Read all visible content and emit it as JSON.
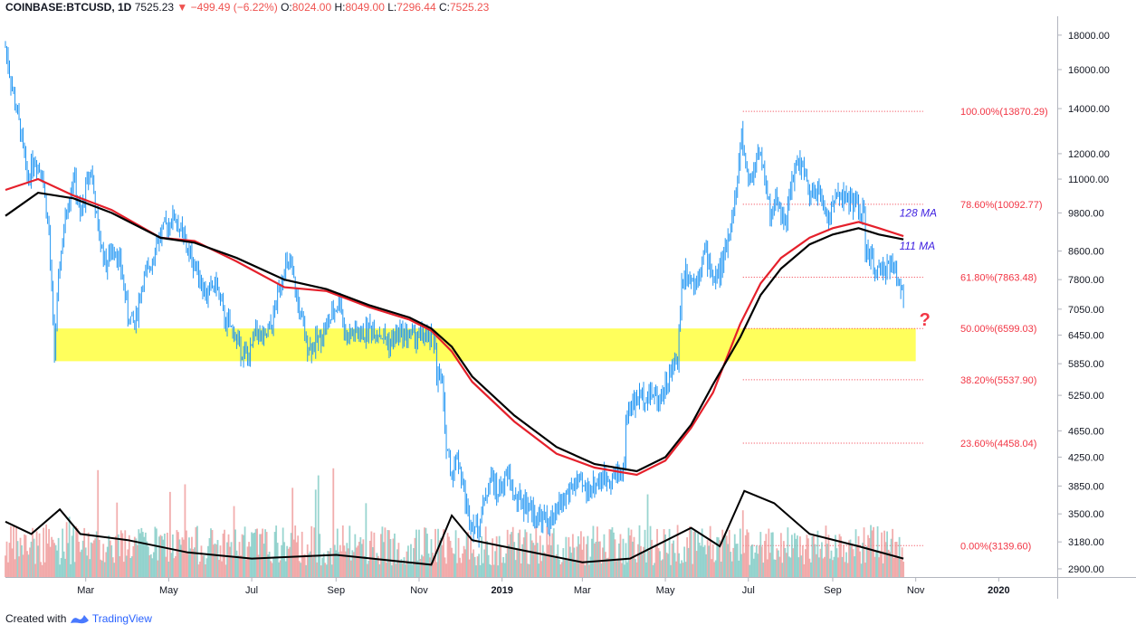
{
  "header": {
    "symbol": "COINBASE:BTCUSD, 1D",
    "last": "7525.23",
    "change": "−499.49 (−6.22%)",
    "o_label": "O:",
    "o": "8024.00",
    "h_label": "H:",
    "h": "8049.00",
    "l_label": "L:",
    "l": "7296.44",
    "c_label": "C:",
    "c": "7525.23"
  },
  "footer": {
    "created_with": "Created with",
    "brand": "TradingView"
  },
  "colors": {
    "candle": "#2196f3",
    "ma_red": "#e5202b",
    "ma_black": "#000000",
    "fib": "#f23645",
    "zone": "#ffff40",
    "vol_up": "#80cbc4",
    "vol_down": "#ef9a9a",
    "ma_label": "#3d1ee0"
  },
  "chart_data": {
    "type": "line",
    "y_scale": "log",
    "ylim": [
      2820,
      19200
    ],
    "xlim": [
      "2018-01-01",
      "2020-02-13"
    ],
    "y_ticks": [
      "18000.00",
      "16000.00",
      "14000.00",
      "12000.00",
      "11000.00",
      "9800.00",
      "8600.00",
      "7800.00",
      "7050.00",
      "6450.00",
      "5850.00",
      "5250.00",
      "4650.00",
      "4250.00",
      "3850.00",
      "3500.00",
      "3180.00",
      "2900.00"
    ],
    "x_ticks": [
      {
        "label": "Mar",
        "date": "2018-03-01"
      },
      {
        "label": "May",
        "date": "2018-05-01"
      },
      {
        "label": "Jul",
        "date": "2018-07-01"
      },
      {
        "label": "Sep",
        "date": "2018-09-01"
      },
      {
        "label": "Nov",
        "date": "2018-11-01"
      },
      {
        "label": "2019",
        "date": "2019-01-01",
        "bold": true
      },
      {
        "label": "Mar",
        "date": "2019-03-01"
      },
      {
        "label": "May",
        "date": "2019-05-01"
      },
      {
        "label": "Jul",
        "date": "2019-07-01"
      },
      {
        "label": "Sep",
        "date": "2019-09-01"
      },
      {
        "label": "Nov",
        "date": "2019-11-01"
      },
      {
        "label": "2020",
        "date": "2020-01-01",
        "bold": true
      }
    ],
    "price": [
      [
        "2018-01-01",
        17300
      ],
      [
        "2018-01-06",
        15000
      ],
      [
        "2018-01-12",
        13000
      ],
      [
        "2018-01-17",
        11000
      ],
      [
        "2018-01-22",
        11800
      ],
      [
        "2018-01-28",
        11300
      ],
      [
        "2018-02-02",
        9100
      ],
      [
        "2018-02-06",
        6100
      ],
      [
        "2018-02-10",
        8300
      ],
      [
        "2018-02-15",
        9900
      ],
      [
        "2018-02-20",
        11200
      ],
      [
        "2018-02-25",
        9600
      ],
      [
        "2018-03-02",
        10900
      ],
      [
        "2018-03-05",
        11400
      ],
      [
        "2018-03-10",
        9200
      ],
      [
        "2018-03-16",
        8200
      ],
      [
        "2018-03-22",
        8800
      ],
      [
        "2018-03-28",
        7900
      ],
      [
        "2018-04-01",
        6900
      ],
      [
        "2018-04-06",
        6700
      ],
      [
        "2018-04-12",
        7800
      ],
      [
        "2018-04-16",
        8000
      ],
      [
        "2018-04-22",
        8900
      ],
      [
        "2018-04-28",
        9300
      ],
      [
        "2018-05-05",
        9700
      ],
      [
        "2018-05-10",
        9200
      ],
      [
        "2018-05-16",
        8500
      ],
      [
        "2018-05-22",
        8100
      ],
      [
        "2018-05-28",
        7400
      ],
      [
        "2018-06-05",
        7700
      ],
      [
        "2018-06-11",
        6800
      ],
      [
        "2018-06-18",
        6500
      ],
      [
        "2018-06-24",
        6100
      ],
      [
        "2018-06-29",
        5950
      ],
      [
        "2018-07-04",
        6600
      ],
      [
        "2018-07-10",
        6300
      ],
      [
        "2018-07-16",
        6700
      ],
      [
        "2018-07-20",
        7400
      ],
      [
        "2018-07-25",
        8200
      ],
      [
        "2018-07-30",
        8100
      ],
      [
        "2018-08-05",
        7000
      ],
      [
        "2018-08-10",
        6300
      ],
      [
        "2018-08-14",
        6200
      ],
      [
        "2018-08-20",
        6400
      ],
      [
        "2018-08-26",
        6700
      ],
      [
        "2018-09-01",
        7100
      ],
      [
        "2018-09-04",
        7300
      ],
      [
        "2018-09-08",
        6400
      ],
      [
        "2018-09-14",
        6500
      ],
      [
        "2018-09-20",
        6450
      ],
      [
        "2018-09-25",
        6600
      ],
      [
        "2018-10-01",
        6550
      ],
      [
        "2018-10-10",
        6300
      ],
      [
        "2018-10-11",
        6250
      ],
      [
        "2018-10-16",
        6500
      ],
      [
        "2018-10-25",
        6450
      ],
      [
        "2018-11-05",
        6400
      ],
      [
        "2018-11-13",
        6300
      ],
      [
        "2018-11-14",
        5600
      ],
      [
        "2018-11-18",
        5500
      ],
      [
        "2018-11-20",
        4600
      ],
      [
        "2018-11-25",
        4000
      ],
      [
        "2018-11-29",
        4300
      ],
      [
        "2018-12-07",
        3500
      ],
      [
        "2018-12-14",
        3300
      ],
      [
        "2018-12-18",
        3600
      ],
      [
        "2018-12-24",
        4000
      ],
      [
        "2018-12-28",
        3750
      ],
      [
        "2019-01-06",
        4000
      ],
      [
        "2019-01-10",
        3700
      ],
      [
        "2019-01-20",
        3600
      ],
      [
        "2019-01-28",
        3450
      ],
      [
        "2019-02-07",
        3400
      ],
      [
        "2019-02-12",
        3600
      ],
      [
        "2019-02-24",
        3900
      ],
      [
        "2019-03-04",
        3800
      ],
      [
        "2019-03-15",
        3950
      ],
      [
        "2019-03-25",
        4000
      ],
      [
        "2019-04-01",
        4100
      ],
      [
        "2019-04-02",
        4900
      ],
      [
        "2019-04-10",
        5200
      ],
      [
        "2019-04-20",
        5300
      ],
      [
        "2019-04-26",
        5200
      ],
      [
        "2019-05-01",
        5400
      ],
      [
        "2019-05-10",
        6000
      ],
      [
        "2019-05-13",
        7700
      ],
      [
        "2019-05-16",
        8100
      ],
      [
        "2019-05-22",
        7700
      ],
      [
        "2019-05-30",
        8600
      ],
      [
        "2019-06-06",
        7800
      ],
      [
        "2019-06-12",
        8200
      ],
      [
        "2019-06-17",
        9200
      ],
      [
        "2019-06-22",
        10500
      ],
      [
        "2019-06-26",
        12800
      ],
      [
        "2019-06-28",
        11900
      ],
      [
        "2019-07-02",
        10800
      ],
      [
        "2019-07-09",
        12300
      ],
      [
        "2019-07-12",
        11300
      ],
      [
        "2019-07-17",
        9700
      ],
      [
        "2019-07-22",
        10300
      ],
      [
        "2019-07-28",
        9500
      ],
      [
        "2019-08-05",
        11600
      ],
      [
        "2019-08-10",
        11500
      ],
      [
        "2019-08-15",
        10200
      ],
      [
        "2019-08-20",
        10700
      ],
      [
        "2019-08-29",
        9600
      ],
      [
        "2019-09-05",
        10600
      ],
      [
        "2019-09-12",
        10200
      ],
      [
        "2019-09-19",
        10150
      ],
      [
        "2019-09-24",
        9600
      ],
      [
        "2019-09-25",
        8600
      ],
      [
        "2019-09-30",
        8300
      ],
      [
        "2019-10-06",
        7900
      ],
      [
        "2019-10-12",
        8300
      ],
      [
        "2019-10-18",
        7950
      ],
      [
        "2019-10-23",
        7500
      ]
    ],
    "ma_128": [
      [
        "2018-01-01",
        10600
      ],
      [
        "2018-01-25",
        11000
      ],
      [
        "2018-02-20",
        10400
      ],
      [
        "2018-03-20",
        9900
      ],
      [
        "2018-04-25",
        9000
      ],
      [
        "2018-05-20",
        8900
      ],
      [
        "2018-06-20",
        8300
      ],
      [
        "2018-07-25",
        7600
      ],
      [
        "2018-08-25",
        7500
      ],
      [
        "2018-09-25",
        7100
      ],
      [
        "2018-10-25",
        6800
      ],
      [
        "2018-11-10",
        6550
      ],
      [
        "2018-11-25",
        6100
      ],
      [
        "2018-12-10",
        5500
      ],
      [
        "2019-01-10",
        4800
      ],
      [
        "2019-02-10",
        4300
      ],
      [
        "2019-03-10",
        4100
      ],
      [
        "2019-04-10",
        4000
      ],
      [
        "2019-05-01",
        4200
      ],
      [
        "2019-05-20",
        4700
      ],
      [
        "2019-06-05",
        5300
      ],
      [
        "2019-06-25",
        6700
      ],
      [
        "2019-07-10",
        7700
      ],
      [
        "2019-07-25",
        8400
      ],
      [
        "2019-08-15",
        9000
      ],
      [
        "2019-09-01",
        9300
      ],
      [
        "2019-09-20",
        9500
      ],
      [
        "2019-10-05",
        9300
      ],
      [
        "2019-10-23",
        9050
      ]
    ],
    "ma_111": [
      [
        "2018-01-01",
        9700
      ],
      [
        "2018-01-25",
        10500
      ],
      [
        "2018-02-20",
        10300
      ],
      [
        "2018-03-20",
        9800
      ],
      [
        "2018-04-25",
        9000
      ],
      [
        "2018-05-20",
        8850
      ],
      [
        "2018-06-20",
        8400
      ],
      [
        "2018-07-25",
        7800
      ],
      [
        "2018-08-25",
        7550
      ],
      [
        "2018-09-25",
        7150
      ],
      [
        "2018-10-25",
        6850
      ],
      [
        "2018-11-10",
        6600
      ],
      [
        "2018-11-25",
        6200
      ],
      [
        "2018-12-10",
        5600
      ],
      [
        "2019-01-10",
        4900
      ],
      [
        "2019-02-10",
        4400
      ],
      [
        "2019-03-10",
        4150
      ],
      [
        "2019-04-10",
        4050
      ],
      [
        "2019-05-01",
        4250
      ],
      [
        "2019-05-20",
        4750
      ],
      [
        "2019-06-05",
        5450
      ],
      [
        "2019-06-25",
        6400
      ],
      [
        "2019-07-10",
        7400
      ],
      [
        "2019-07-25",
        8100
      ],
      [
        "2019-08-15",
        8800
      ],
      [
        "2019-09-01",
        9100
      ],
      [
        "2019-09-20",
        9300
      ],
      [
        "2019-10-05",
        9100
      ],
      [
        "2019-10-23",
        8950
      ]
    ],
    "volume_ma": [
      [
        "2018-01-01",
        0.45
      ],
      [
        "2018-01-20",
        0.35
      ],
      [
        "2018-02-10",
        0.55
      ],
      [
        "2018-02-25",
        0.35
      ],
      [
        "2018-04-01",
        0.3
      ],
      [
        "2018-05-15",
        0.2
      ],
      [
        "2018-07-01",
        0.15
      ],
      [
        "2018-09-01",
        0.18
      ],
      [
        "2018-11-10",
        0.1
      ],
      [
        "2018-11-25",
        0.5
      ],
      [
        "2018-12-10",
        0.3
      ],
      [
        "2019-01-15",
        0.22
      ],
      [
        "2019-03-01",
        0.12
      ],
      [
        "2019-04-05",
        0.15
      ],
      [
        "2019-05-20",
        0.4
      ],
      [
        "2019-06-10",
        0.25
      ],
      [
        "2019-06-28",
        0.7
      ],
      [
        "2019-07-20",
        0.6
      ],
      [
        "2019-08-15",
        0.35
      ],
      [
        "2019-09-20",
        0.25
      ],
      [
        "2019-10-23",
        0.15
      ]
    ],
    "zone": {
      "from": "2018-02-06",
      "to": "2019-11-01",
      "low": 5900,
      "high": 6599
    },
    "fib_start": "2019-06-27",
    "fib_levels": [
      {
        "label": "100.00%(13870.29)",
        "value": 13870.29
      },
      {
        "label": "78.60%(10092.77)",
        "value": 10092.77
      },
      {
        "label": "61.80%(7863.48)",
        "value": 7863.48
      },
      {
        "label": "50.00%(6599.03)",
        "value": 6599.03
      },
      {
        "label": "38.20%(5537.90)",
        "value": 5537.9
      },
      {
        "label": "23.60%(4458.04)",
        "value": 4458.04
      },
      {
        "label": "0.00%(3139.60)",
        "value": 3139.6
      }
    ],
    "annotations": [
      {
        "text": "128 MA",
        "date": "2019-10-20",
        "value": 9800
      },
      {
        "text": "111 MA",
        "date": "2019-10-20",
        "value": 8750
      },
      {
        "text": "?",
        "date": "2019-11-01",
        "value": 6750
      }
    ]
  }
}
